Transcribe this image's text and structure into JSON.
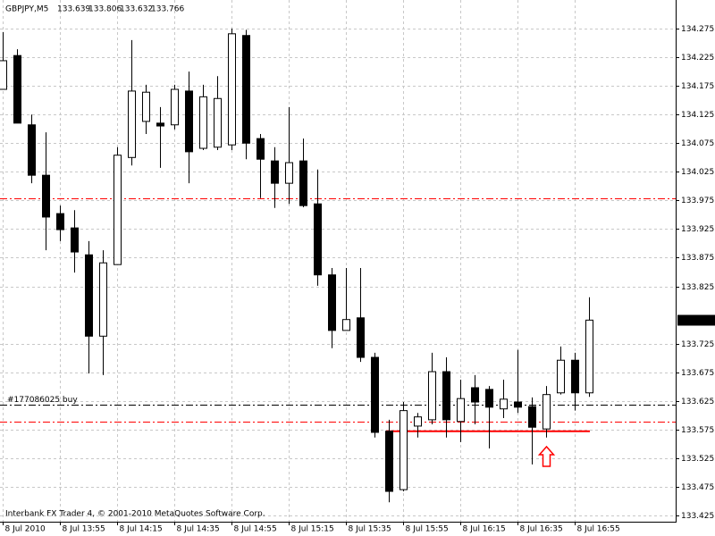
{
  "chart_data": {
    "type": "candlestick",
    "title": "GBPJPY,M5",
    "footer": "Interbank FX Trader 4, © 2001-2010 MetaQuotes Software Corp.",
    "categories": [
      "8 Jul 2010",
      null,
      null,
      null,
      "8 Jul 13:55",
      null,
      null,
      null,
      "8 Jul 14:15",
      null,
      null,
      null,
      "8 Jul 14:35",
      null,
      null,
      null,
      "8 Jul 14:55",
      null,
      null,
      null,
      "8 Jul 15:15",
      null,
      null,
      null,
      "8 Jul 15:35",
      null,
      null,
      null,
      "8 Jul 15:55",
      null,
      null,
      null,
      "8 Jul 16:15",
      null,
      null,
      null,
      "8 Jul 16:35",
      null,
      null,
      null,
      "8 Jul 16:55",
      null
    ],
    "open": [
      134.169,
      134.228,
      134.107,
      134.019,
      133.952,
      133.927,
      133.88,
      133.738,
      133.863,
      134.05,
      134.113,
      134.11,
      134.107,
      134.166,
      134.066,
      134.068,
      134.072,
      134.263,
      134.083,
      134.044,
      134.005,
      134.044,
      133.969,
      133.845,
      133.748,
      133.77,
      133.701,
      133.572,
      133.47,
      133.581,
      133.592,
      133.676,
      133.589,
      133.648,
      133.645,
      133.611,
      133.623,
      133.615,
      133.576,
      133.639,
      133.696,
      133.639
    ],
    "high": [
      134.269,
      134.239,
      134.125,
      134.094,
      133.966,
      133.958,
      133.904,
      133.888,
      134.068,
      134.255,
      134.177,
      134.138,
      134.177,
      134.2,
      134.177,
      134.192,
      134.275,
      134.273,
      134.091,
      134.068,
      134.138,
      134.083,
      134.029,
      133.857,
      133.857,
      133.857,
      133.709,
      133.592,
      133.623,
      133.604,
      133.709,
      133.701,
      133.662,
      133.67,
      133.651,
      133.662,
      133.714,
      133.631,
      133.651,
      133.72,
      133.709,
      133.806
    ],
    "low": [
      134.169,
      134.11,
      134.005,
      133.888,
      133.904,
      133.849,
      133.673,
      133.67,
      133.863,
      134.036,
      134.091,
      134.032,
      134.099,
      134.005,
      134.063,
      134.063,
      134.063,
      134.047,
      133.979,
      133.962,
      133.969,
      133.963,
      133.826,
      133.717,
      133.748,
      133.693,
      133.561,
      133.448,
      133.467,
      133.561,
      133.584,
      133.561,
      133.553,
      133.584,
      133.542,
      133.595,
      133.604,
      133.514,
      133.561,
      133.636,
      133.608,
      133.632
    ],
    "close": [
      134.219,
      134.11,
      134.019,
      133.946,
      133.924,
      133.885,
      133.738,
      133.866,
      134.054,
      134.166,
      134.164,
      134.105,
      134.169,
      134.06,
      134.156,
      134.153,
      134.266,
      134.075,
      134.047,
      134.005,
      134.041,
      133.966,
      133.845,
      133.748,
      133.767,
      133.701,
      133.57,
      133.467,
      133.608,
      133.597,
      133.676,
      133.592,
      133.629,
      133.623,
      133.614,
      133.628,
      133.614,
      133.579,
      133.636,
      133.696,
      133.639,
      133.766
    ],
    "up_color": "#ffffff",
    "down_color": "#000000",
    "ylim": [
      133.414,
      134.325
    ],
    "yticks": [
      134.275,
      134.225,
      134.175,
      134.125,
      134.075,
      134.025,
      133.975,
      133.925,
      133.875,
      133.825,
      133.725,
      133.675,
      133.625,
      133.575,
      133.525,
      133.475,
      133.425
    ],
    "grid": true,
    "levels": [
      {
        "name": "#177086025 buy",
        "value": 133.618,
        "color": "#000000"
      },
      {
        "value": 133.979,
        "color": "#ff0000"
      },
      {
        "value": 133.589,
        "color": "#ff0000"
      }
    ],
    "trendline": {
      "from": 27,
      "to": 41,
      "value": 133.572,
      "color": "#ff0000"
    },
    "arrow": {
      "index": 38,
      "value": 133.545,
      "color": "#ff0000"
    }
  }
}
